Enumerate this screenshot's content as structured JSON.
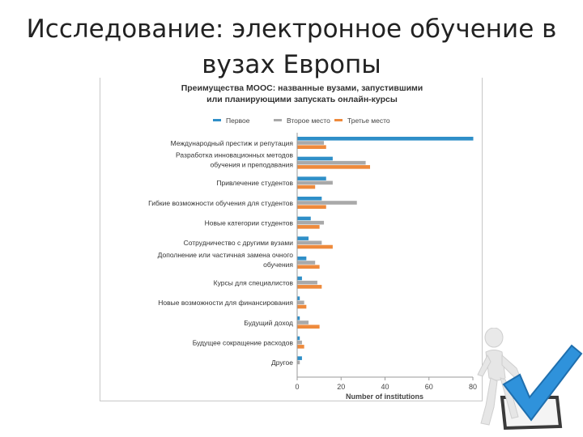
{
  "slide": {
    "title_line1": "Исследование: электронное обучение в",
    "title_line2": "вузах Европы"
  },
  "colors": {
    "series_first": "#2f8fc8",
    "series_second": "#a9a9a9",
    "series_third": "#ee8a3c",
    "figure": "#e6e6e6",
    "check": "#2f92db"
  },
  "chart_data": {
    "type": "bar",
    "orientation": "horizontal",
    "title": "Преимущества MOOC: названные вузами, запустившими или планирующими запускать онлайн-курсы",
    "title_lines": [
      "Преимущества MOOC: названные вузами, запустившими",
      "или планирующими запускать онлайн-курсы"
    ],
    "xlabel": "Number of institutions",
    "ylabel": "",
    "xlim": [
      0,
      80
    ],
    "xticks": [
      0,
      20,
      40,
      60,
      80
    ],
    "legend_position": "top",
    "grid": false,
    "categories": [
      "Международный престиж и репутация",
      "Разработка инновационных методов обучения и преподавания",
      "Привлечение студентов",
      "Гибкие возможности обучения для студентов",
      "Новые категории студентов",
      "Сотрудничество с другими вузами",
      "Дополнение или частичная замена очного обучения",
      "Курсы для специалистов",
      "Новые возможности для финансирования",
      "Будущий доход",
      "Будущее сокращение расходов",
      "Другое"
    ],
    "category_lines": [
      [
        "Международный престиж и репутация"
      ],
      [
        "Разработка инновационных методов",
        "обучения и преподавания"
      ],
      [
        "Привлечение студентов"
      ],
      [
        "Гибкие возможности обучения для студентов"
      ],
      [
        "Новые категории студентов"
      ],
      [
        "Сотрудничество с другими вузами"
      ],
      [
        "Дополнение или частичная замена очного",
        "обучения"
      ],
      [
        "Курсы для специалистов"
      ],
      [
        "Новые возможности для финансирования"
      ],
      [
        "Будущий доход"
      ],
      [
        "Будущее сокращение расходов"
      ],
      [
        "Другое"
      ]
    ],
    "series": [
      {
        "name": "Первое",
        "color": "#2f8fc8",
        "values": [
          80,
          16,
          13,
          11,
          6,
          5,
          4,
          2,
          1,
          1,
          1,
          2
        ]
      },
      {
        "name": "Второе место",
        "color": "#a9a9a9",
        "values": [
          12,
          31,
          16,
          27,
          12,
          11,
          8,
          9,
          3,
          5,
          2,
          1
        ]
      },
      {
        "name": "Третье место",
        "color": "#ee8a3c",
        "values": [
          13,
          33,
          8,
          13,
          10,
          16,
          10,
          11,
          4,
          10,
          3,
          0
        ]
      }
    ]
  }
}
